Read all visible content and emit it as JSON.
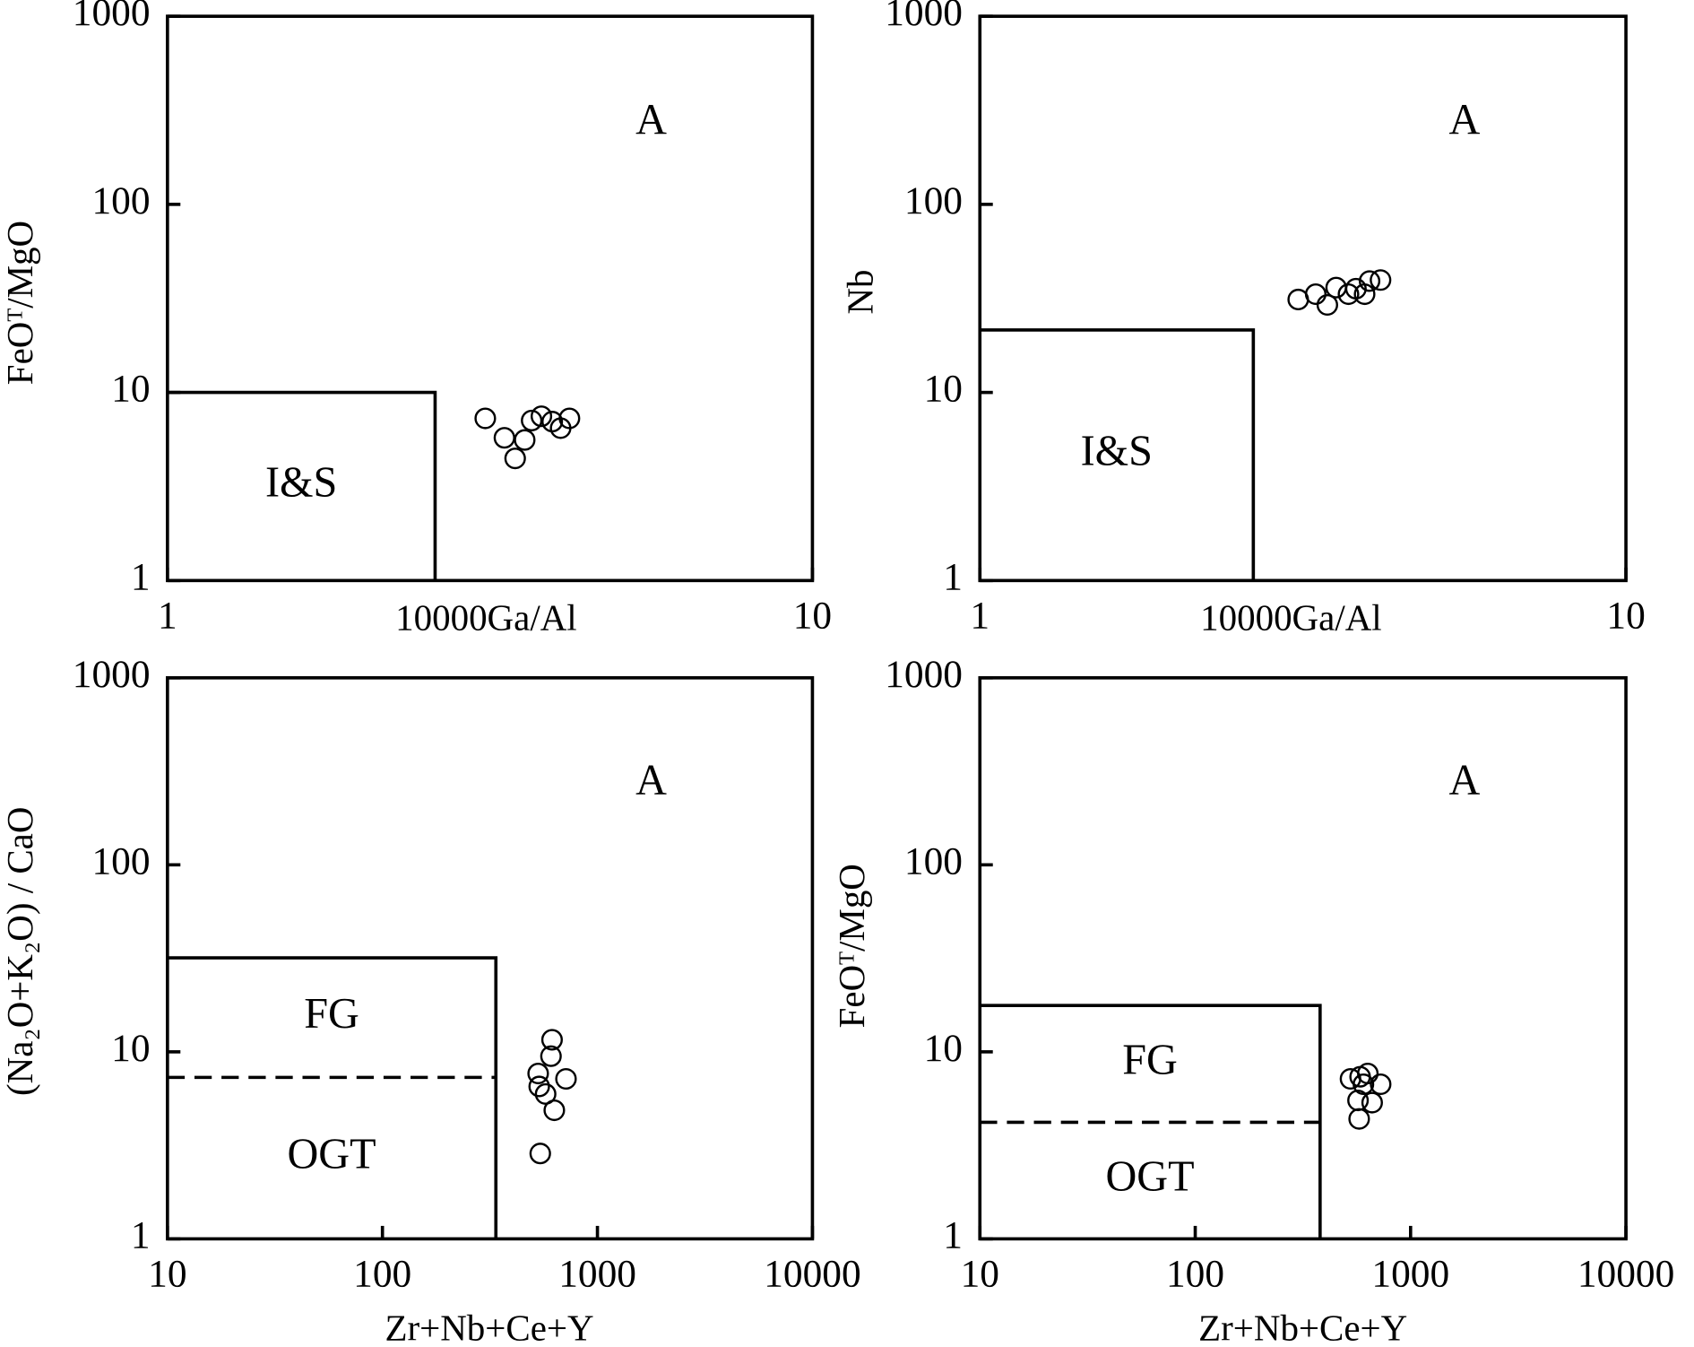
{
  "chart_data": [
    {
      "type": "scatter",
      "xlabel": "10000Ga/Al",
      "ylabel": "FeOᵀ/MgO",
      "xscale": "log",
      "yscale": "log",
      "xlim": [
        1,
        10
      ],
      "ylim": [
        1,
        1000
      ],
      "xticks": [
        1,
        10
      ],
      "yticks": [
        1,
        10,
        100,
        1000
      ],
      "annotation": "A",
      "field": {
        "labels": [
          "I&S"
        ],
        "xlim": [
          1,
          2.6
        ],
        "ylim": [
          1,
          10
        ]
      },
      "x": [
        3.11,
        3.33,
        3.46,
        3.58,
        3.67,
        3.8,
        3.95,
        4.07,
        4.2
      ],
      "values": [
        7.28,
        5.74,
        4.46,
        5.59,
        7.09,
        7.47,
        7.0,
        6.46,
        7.28
      ]
    },
    {
      "type": "scatter",
      "xlabel": "10000Ga/Al",
      "ylabel": "Nb",
      "xscale": "log",
      "yscale": "log",
      "xlim": [
        1,
        10
      ],
      "ylim": [
        1,
        1000
      ],
      "xticks": [
        1,
        10
      ],
      "yticks": [
        1,
        10,
        100,
        1000
      ],
      "annotation": "A",
      "field": {
        "labels": [
          "I&S"
        ],
        "xlim": [
          1,
          2.65
        ],
        "ylim": [
          1,
          21.5
        ]
      },
      "x": [
        3.11,
        3.31,
        3.45,
        3.56,
        3.72,
        3.82,
        3.94,
        4.01,
        4.17
      ],
      "values": [
        31.2,
        33.3,
        29.2,
        36.1,
        33.3,
        35.6,
        33.3,
        39.1,
        39.6
      ]
    },
    {
      "type": "scatter",
      "xlabel": "Zr+Nb+Ce+Y",
      "ylabel": "(Na₂O+K₂O) / CaO",
      "xscale": "log",
      "yscale": "log",
      "xlim": [
        10,
        10000
      ],
      "ylim": [
        1,
        1000
      ],
      "xticks": [
        10,
        100,
        1000,
        10000
      ],
      "yticks": [
        1,
        10,
        100,
        1000
      ],
      "annotation": "A",
      "field": {
        "labels": [
          "FG",
          "OGT"
        ],
        "xlim": [
          10,
          337
        ],
        "ylim": [
          1,
          31.8
        ],
        "split": 7.3
      },
      "x": [
        615,
        608,
        530,
        714,
        536,
        574,
        630,
        542
      ],
      "values": [
        11.6,
        9.48,
        7.66,
        7.17,
        6.53,
        5.95,
        4.87,
        2.86
      ]
    },
    {
      "type": "scatter",
      "xlabel": "Zr+Nb+Ce+Y",
      "ylabel": "FeOᵀ/MgO",
      "xscale": "log",
      "yscale": "log",
      "xlim": [
        10,
        10000
      ],
      "ylim": [
        1,
        1000
      ],
      "xticks": [
        10,
        100,
        1000,
        10000
      ],
      "yticks": [
        1,
        10,
        100,
        1000
      ],
      "annotation": "A",
      "field": {
        "labels": [
          "FG",
          "OGT"
        ],
        "xlim": [
          10,
          380
        ],
        "ylim": [
          1,
          17.7
        ],
        "split": 4.2
      },
      "x": [
        526,
        583,
        633,
        726,
        604,
        570,
        663,
        577
      ],
      "values": [
        7.17,
        7.36,
        7.66,
        6.71,
        6.71,
        5.5,
        5.35,
        4.38
      ]
    }
  ]
}
